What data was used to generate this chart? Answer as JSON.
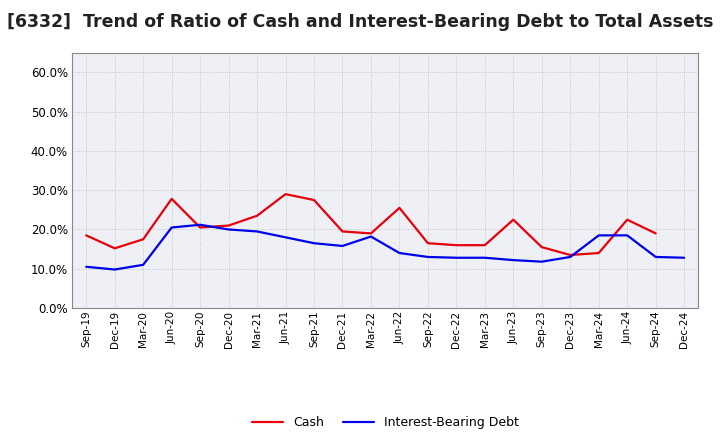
{
  "title": "[6332]  Trend of Ratio of Cash and Interest-Bearing Debt to Total Assets",
  "x_labels": [
    "Sep-19",
    "Dec-19",
    "Mar-20",
    "Jun-20",
    "Sep-20",
    "Dec-20",
    "Mar-21",
    "Jun-21",
    "Sep-21",
    "Dec-21",
    "Mar-22",
    "Jun-22",
    "Sep-22",
    "Dec-22",
    "Mar-23",
    "Jun-23",
    "Sep-23",
    "Dec-23",
    "Mar-24",
    "Jun-24",
    "Sep-24",
    "Dec-24"
  ],
  "cash": [
    0.185,
    0.152,
    0.175,
    0.278,
    0.205,
    0.21,
    0.235,
    0.29,
    0.275,
    0.195,
    0.19,
    0.255,
    0.165,
    0.16,
    0.16,
    0.225,
    0.155,
    0.135,
    0.14,
    0.225,
    0.19,
    null
  ],
  "ibd": [
    0.105,
    0.098,
    0.11,
    0.205,
    0.212,
    0.2,
    0.195,
    0.18,
    0.165,
    0.158,
    0.182,
    0.14,
    0.13,
    0.128,
    0.128,
    0.122,
    0.118,
    0.13,
    0.185,
    0.185,
    0.13,
    0.128
  ],
  "cash_color": "#e8000a",
  "ibd_color": "#0000e8",
  "plot_bg_color": "#eef0f5",
  "fig_bg_color": "#ffffff",
  "grid_color": "#bbbbbb",
  "ylim": [
    0.0,
    0.65
  ],
  "yticks": [
    0.0,
    0.1,
    0.2,
    0.3,
    0.4,
    0.5,
    0.6
  ],
  "legend_cash": "Cash",
  "legend_ibd": "Interest-Bearing Debt",
  "title_fontsize": 12.5,
  "line_width": 1.6
}
